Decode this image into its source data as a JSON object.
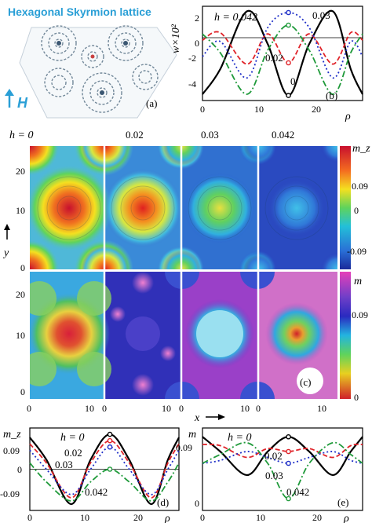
{
  "title": "Hexagonal Skyrmion lattice",
  "field_label": "H",
  "panel_letters": {
    "a": "(a)",
    "b": "(b)",
    "c": "(c)",
    "d": "(d)",
    "e": "(e)"
  },
  "colors": {
    "black": "#000000",
    "red": "#e0242a",
    "blue": "#2030c8",
    "green": "#1f9a3a",
    "accent": "#2a9fd6"
  },
  "chart_data": [
    {
      "id": "b",
      "type": "line",
      "ylabel": "w×10²",
      "xlabel": "ρ",
      "xlim": [
        0,
        27
      ],
      "ylim": [
        -5,
        2.5
      ],
      "xticks": [
        "0",
        "10",
        "20"
      ],
      "yticks": [
        "2",
        "0",
        "-2",
        "-4"
      ],
      "annotations": [
        "h = 0.042",
        "0.03",
        "0.02",
        "0"
      ],
      "series": [
        {
          "name": "0",
          "color": "#000000",
          "style": "solid",
          "x": [
            0,
            3,
            7.5,
            11,
            14.5,
            18,
            22,
            25,
            27
          ],
          "y": [
            -4.5,
            -2.5,
            2.1,
            -0.5,
            -4.6,
            -0.5,
            2.1,
            -2.5,
            -4.5
          ]
        },
        {
          "name": "0.02",
          "color": "#e0242a",
          "style": "dashed",
          "x": [
            0,
            3,
            7.5,
            11,
            14.5,
            18,
            22,
            25,
            27
          ],
          "y": [
            -0.2,
            0.4,
            -2.1,
            0.3,
            -2.0,
            0.3,
            -2.1,
            0.4,
            -0.2
          ]
        },
        {
          "name": "0.03",
          "color": "#2030c8",
          "style": "dotted",
          "x": [
            0,
            3,
            7.5,
            11,
            14.5,
            18,
            22,
            25,
            27
          ],
          "y": [
            -1.5,
            -0.3,
            -3.2,
            0.8,
            2.0,
            0.8,
            -3.2,
            -0.3,
            -1.5
          ]
        },
        {
          "name": "0.042",
          "color": "#1f9a3a",
          "style": "dashdot",
          "x": [
            0,
            3,
            7.5,
            11,
            14.5,
            18,
            22,
            25,
            27
          ],
          "y": [
            0.3,
            -1.2,
            -4.5,
            -1.0,
            1.0,
            -1.0,
            -4.5,
            -1.2,
            0.3
          ]
        }
      ]
    },
    {
      "id": "c",
      "type": "heatmap",
      "column_headers": [
        "h =  0",
        "0.02",
        "0.03",
        "0.042"
      ],
      "row_labels": [
        "y",
        "x"
      ],
      "yticks_top": [
        "20",
        "10",
        "0"
      ],
      "yticks_bottom": [
        "20",
        "10",
        "0"
      ],
      "xticks": [
        "0",
        "10"
      ],
      "colorbars": [
        {
          "label": "m_z",
          "ticks": [
            "0.09",
            "0",
            "-0.09"
          ]
        },
        {
          "label": "m",
          "ticks": [
            "0.09",
            "0"
          ]
        }
      ]
    },
    {
      "id": "d",
      "type": "line",
      "ylabel": "m_z",
      "xlabel": "ρ",
      "xlim": [
        0,
        27
      ],
      "ylim": [
        -0.13,
        0.13
      ],
      "xticks": [
        "0",
        "10",
        "20"
      ],
      "yticks": [
        "0.09",
        "0",
        "-0.09"
      ],
      "annotations": [
        "h = 0",
        "0.02",
        "0.03",
        "0.042"
      ],
      "series": [
        {
          "name": "0",
          "color": "#000000",
          "style": "solid",
          "x": [
            0,
            3,
            7.5,
            11,
            14.5,
            18,
            22,
            25,
            27
          ],
          "y": [
            0.1,
            0.03,
            -0.11,
            0.03,
            0.11,
            0.03,
            -0.11,
            0.03,
            0.1
          ]
        },
        {
          "name": "0.02",
          "color": "#e0242a",
          "style": "dashed",
          "x": [
            0,
            3,
            7.5,
            11,
            14.5,
            18,
            22,
            25,
            27
          ],
          "y": [
            0.08,
            0.02,
            -0.09,
            0.02,
            0.09,
            0.02,
            -0.09,
            0.02,
            0.08
          ]
        },
        {
          "name": "0.03",
          "color": "#2030c8",
          "style": "dotted",
          "x": [
            0,
            3,
            7.5,
            11,
            14.5,
            18,
            22,
            25,
            27
          ],
          "y": [
            0.06,
            0.0,
            -0.08,
            0.0,
            0.07,
            0.0,
            -0.08,
            0.0,
            0.06
          ]
        },
        {
          "name": "0.042",
          "color": "#1f9a3a",
          "style": "dashdot",
          "x": [
            0,
            3,
            7.5,
            11,
            14.5,
            18,
            22,
            25,
            27
          ],
          "y": [
            0.02,
            -0.04,
            -0.1,
            -0.04,
            0.0,
            -0.04,
            -0.1,
            -0.04,
            0.02
          ]
        }
      ]
    },
    {
      "id": "e",
      "type": "line",
      "ylabel": "m",
      "xlabel": "ρ",
      "xlim": [
        0,
        27
      ],
      "ylim": [
        -0.02,
        0.12
      ],
      "xticks": [
        "0",
        "10",
        "20"
      ],
      "yticks": [
        "0.09",
        "0"
      ],
      "annotations": [
        "h = 0",
        "0.02",
        "0.03",
        "0.042"
      ],
      "series": [
        {
          "name": "0",
          "color": "#000000",
          "style": "solid",
          "x": [
            0,
            3,
            7.5,
            11,
            14.5,
            18,
            22,
            25,
            27
          ],
          "y": [
            0.105,
            0.08,
            0.04,
            0.08,
            0.105,
            0.08,
            0.04,
            0.08,
            0.105
          ]
        },
        {
          "name": "0.02",
          "color": "#e0242a",
          "style": "dashed",
          "x": [
            0,
            3,
            7.5,
            11,
            14.5,
            18,
            22,
            25,
            27
          ],
          "y": [
            0.092,
            0.09,
            0.07,
            0.085,
            0.08,
            0.085,
            0.07,
            0.09,
            0.092
          ]
        },
        {
          "name": "0.03",
          "color": "#2030c8",
          "style": "dotted",
          "x": [
            0,
            3,
            7.5,
            11,
            14.5,
            18,
            22,
            25,
            27
          ],
          "y": [
            0.06,
            0.065,
            0.08,
            0.07,
            0.06,
            0.07,
            0.08,
            0.065,
            0.06
          ]
        },
        {
          "name": "0.042",
          "color": "#1f9a3a",
          "style": "dashdot",
          "x": [
            0,
            3,
            7.5,
            11,
            14.5,
            18,
            22,
            25,
            27
          ],
          "y": [
            0.06,
            0.075,
            0.095,
            0.06,
            0.0,
            0.06,
            0.095,
            0.075,
            0.06
          ]
        }
      ]
    }
  ]
}
